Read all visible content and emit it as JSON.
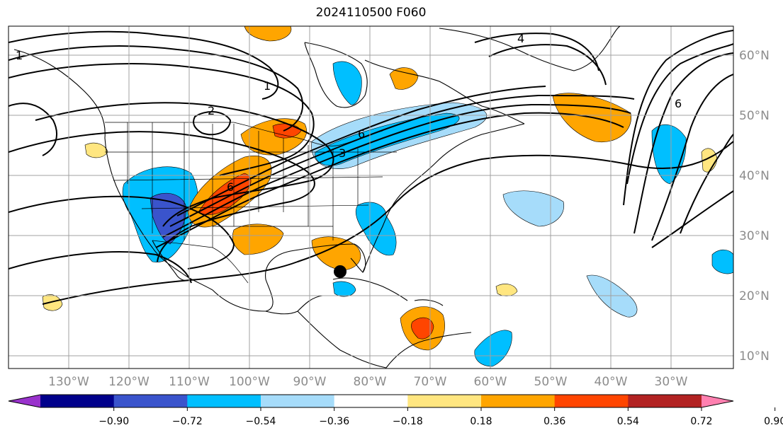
{
  "title": "2024110500 F060",
  "map": {
    "lon_range": [
      -138,
      -17
    ],
    "lat_range": [
      8,
      65
    ],
    "gridlines": true,
    "marker": {
      "lon": -85,
      "lat": 24,
      "color": "#000000"
    }
  },
  "lon_labels": [
    "130°W",
    "120°W",
    "110°W",
    "100°W",
    "90°W",
    "80°W",
    "70°W",
    "60°W",
    "50°W",
    "40°W",
    "30°W"
  ],
  "lat_labels": [
    "60°N",
    "50°N",
    "40°N",
    "30°N",
    "20°N",
    "10°N"
  ],
  "contour_labels": [
    "1",
    "1",
    "2",
    "4",
    "6",
    "6",
    "6",
    "3"
  ],
  "colorbar": {
    "levels": [
      "−0.90",
      "−0.72",
      "−0.54",
      "−0.36",
      "−0.18",
      "0.18",
      "0.36",
      "0.54",
      "0.72",
      "0.90"
    ],
    "colors": [
      "#9932cc",
      "#00008b",
      "#3a54cc",
      "#00bfff",
      "#a6dcfa",
      "#ffffff",
      "#ffe680",
      "#ffa500",
      "#ff4500",
      "#b22222",
      "#ff80b0"
    ]
  }
}
